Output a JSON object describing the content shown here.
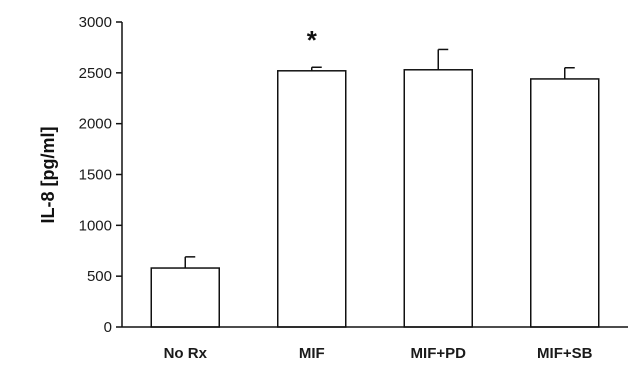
{
  "chart_data": {
    "type": "bar",
    "title": "",
    "xlabel": "",
    "ylabel": "IL-8 [pg/ml]",
    "ylim": [
      0,
      3000
    ],
    "yticks": [
      0,
      500,
      1000,
      1500,
      2000,
      2500,
      3000
    ],
    "categories": [
      "No Rx",
      "MIF",
      "MIF+PD",
      "MIF+SB"
    ],
    "values": [
      580,
      2520,
      2530,
      2440
    ],
    "errors": [
      110,
      35,
      200,
      110
    ],
    "annotations": [
      {
        "category": "MIF",
        "text": "*"
      }
    ],
    "grid": false,
    "legend": "none",
    "colors": {
      "bar_fill": "#ffffff",
      "bar_stroke": "#111111",
      "axis": "#111111"
    }
  }
}
